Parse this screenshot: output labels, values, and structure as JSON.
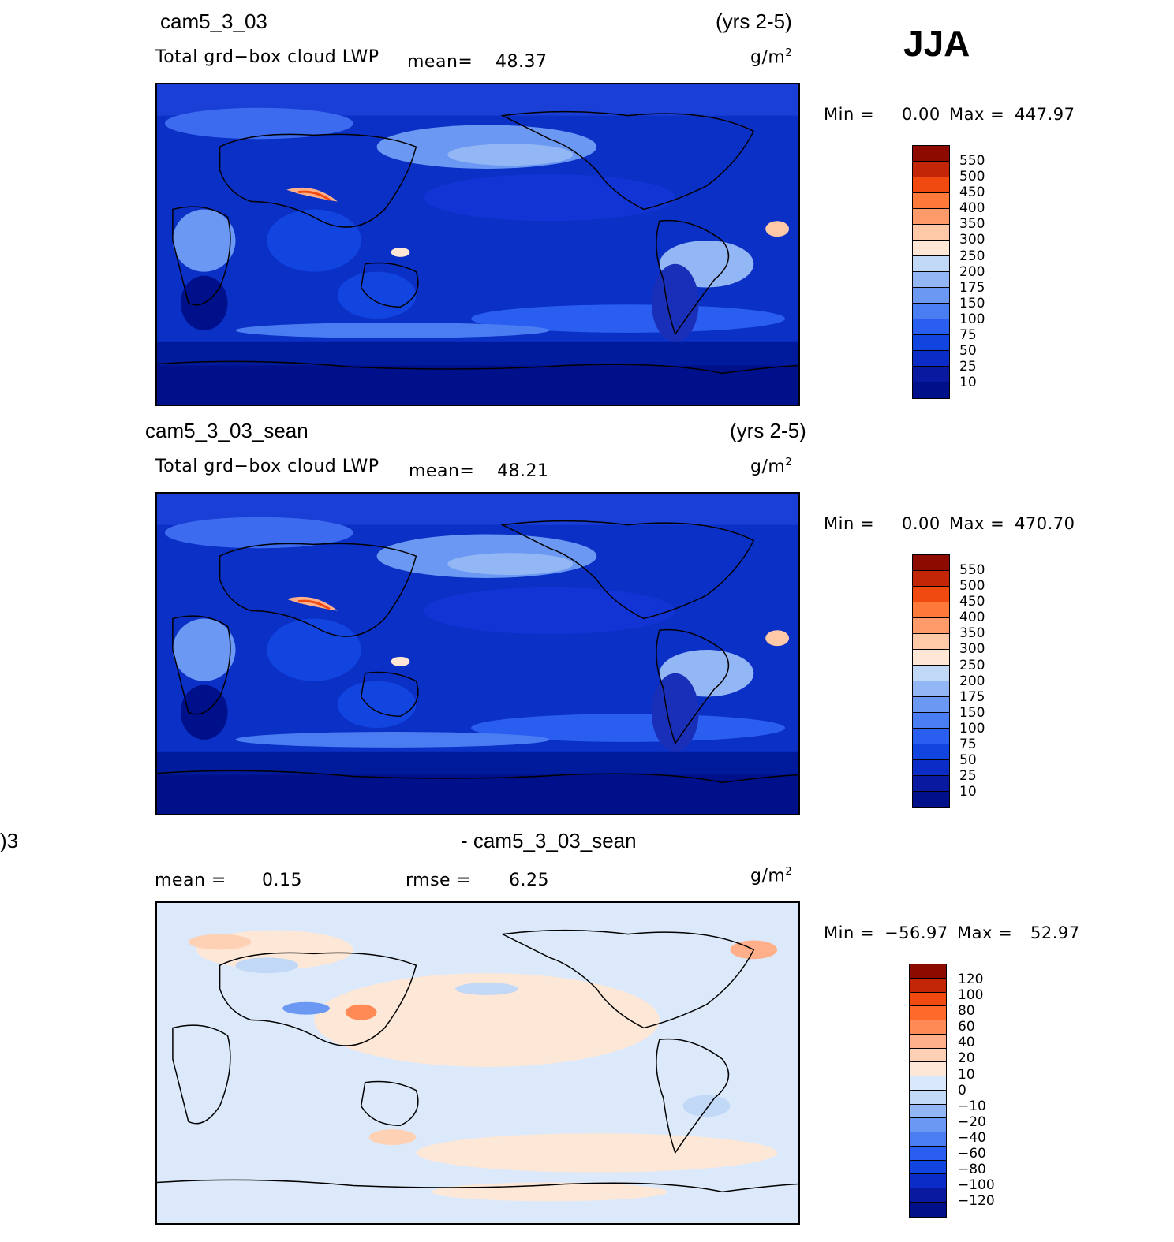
{
  "season": "JJA",
  "colors": {
    "abs_scale": [
      "#00108a",
      "#0a1aa0",
      "#0b2cc7",
      "#1244e0",
      "#2a5ef0",
      "#4a7df2",
      "#6b98f2",
      "#93b6f5",
      "#c2d8f7",
      "#ffe6d5",
      "#ffc9a8",
      "#ff9a6a",
      "#ff7a3a",
      "#f04a10",
      "#c22606",
      "#8c0a00"
    ],
    "diff_scale": [
      "#00108a",
      "#0a1aa0",
      "#0b2cc7",
      "#1244e0",
      "#2a5ef0",
      "#4a7df2",
      "#6b98f2",
      "#93b6f5",
      "#c2d8f7",
      "#d9e8fb",
      "#fde8d8",
      "#ffd1b4",
      "#ffb08a",
      "#ff8a55",
      "#ff6a2a",
      "#f04a10",
      "#c22606",
      "#8c0a00"
    ],
    "ocean_abs": "#0a2fc8",
    "ocean_diff": "#dce9fb"
  },
  "panels": [
    {
      "case": "cam5_3_03",
      "years": "(yrs 2-5)",
      "variable": "Total grd−box cloud LWP",
      "mean_label": "mean=",
      "mean_value": "48.37",
      "units": "g/m",
      "units_exp": "2",
      "min_label": "Min  =",
      "min_value": "0.00",
      "max_label": "Max  =",
      "max_value": "447.97",
      "levels": [
        "550",
        "500",
        "450",
        "400",
        "350",
        "300",
        "250",
        "200",
        "175",
        "150",
        "100",
        "75",
        "50",
        "25",
        "10"
      ]
    },
    {
      "case": "cam5_3_03_sean",
      "years": "(yrs 2-5)",
      "variable": "Total grd−box cloud LWP",
      "mean_label": "mean=",
      "mean_value": "48.21",
      "units": "g/m",
      "units_exp": "2",
      "min_label": "Min  =",
      "min_value": "0.00",
      "max_label": "Max  =",
      "max_value": "470.70",
      "levels": [
        "550",
        "500",
        "450",
        "400",
        "350",
        "300",
        "250",
        "200",
        "175",
        "150",
        "100",
        "75",
        "50",
        "25",
        "10"
      ]
    },
    {
      "case_left": ")3",
      "case": "- cam5_3_03_sean",
      "mean_label": "mean =",
      "mean_value": "0.15",
      "rmse_label": "rmse =",
      "rmse_value": "6.25",
      "units": "g/m",
      "units_exp": "2",
      "min_label": "Min  =",
      "min_value": "−56.97",
      "max_label": "Max  =",
      "max_value": "52.97",
      "levels": [
        "120",
        "100",
        "80",
        "60",
        "40",
        "20",
        "10",
        "0",
        "−10",
        "−20",
        "−40",
        "−60",
        "−80",
        "−100",
        "−120"
      ]
    }
  ]
}
